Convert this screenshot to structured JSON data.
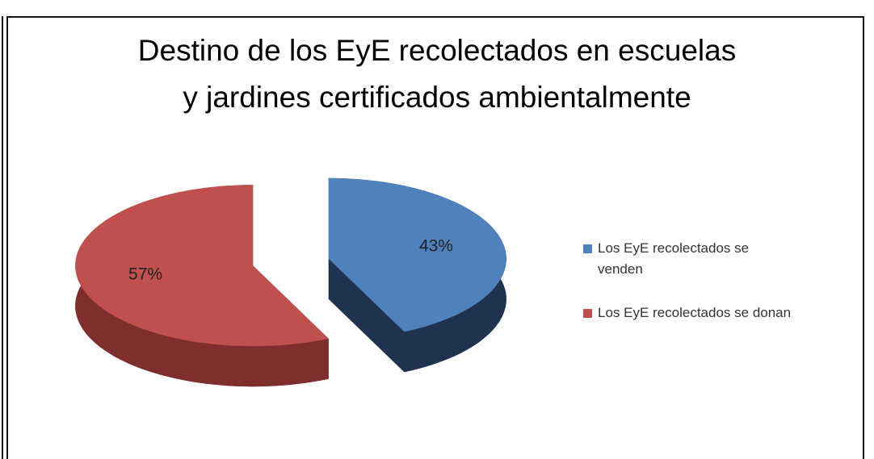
{
  "chart_data": {
    "type": "pie",
    "title": [
      "Destino de los EyE recolectados en escuelas",
      "y jardines certificados ambientalmente"
    ],
    "categories": [
      "Los EyE recolectados se venden",
      "Los EyE recolectados se donan"
    ],
    "values": [
      43,
      57
    ],
    "value_labels": [
      "43%",
      "57%"
    ],
    "colors": [
      "#4f81bd",
      "#c0504d"
    ],
    "side_colors": [
      "#1f3350",
      "#7e2f2d"
    ],
    "exploded": true,
    "legend": "right"
  }
}
